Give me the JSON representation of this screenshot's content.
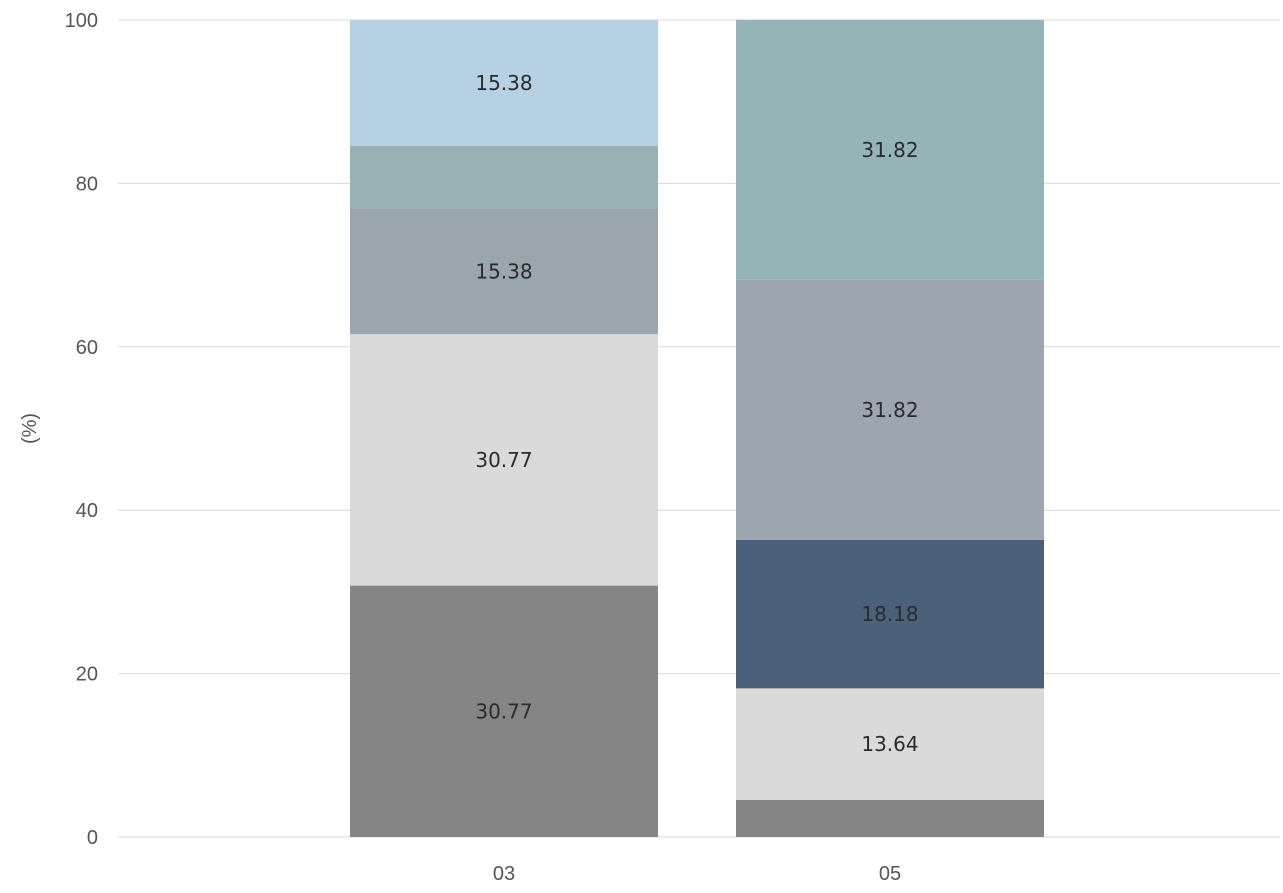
{
  "chart_data": {
    "type": "bar",
    "stacked": true,
    "categories": [
      "03",
      "05"
    ],
    "ylabel": "(%)",
    "ylim": [
      0,
      100
    ],
    "yticks": [
      0,
      20,
      40,
      60,
      80,
      100
    ],
    "grid": true,
    "segments": [
      {
        "category": "03",
        "start": 0,
        "value": 30.77,
        "color": "#858585",
        "label": "30.77"
      },
      {
        "category": "03",
        "start": 30.77,
        "value": 30.77,
        "color": "#dadada",
        "label": "30.77"
      },
      {
        "category": "03",
        "start": 61.54,
        "value": 15.38,
        "color": "#9ba5ac",
        "label": "15.38"
      },
      {
        "category": "03",
        "start": 76.92,
        "value": 7.7,
        "color": "#97b1b5",
        "label": ""
      },
      {
        "category": "03",
        "start": 84.62,
        "value": 15.38,
        "color": "#b6d1e4",
        "label": "15.38"
      },
      {
        "category": "05",
        "start": 0,
        "value": 4.55,
        "color": "#858585",
        "label": ""
      },
      {
        "category": "05",
        "start": 4.55,
        "value": 13.64,
        "color": "#dadada",
        "label": "13.64"
      },
      {
        "category": "05",
        "start": 18.19,
        "value": 18.18,
        "color": "#4b6079",
        "label": "18.18"
      },
      {
        "category": "05",
        "start": 36.37,
        "value": 31.82,
        "color": "#9ca5b0",
        "label": "31.82"
      },
      {
        "category": "05",
        "start": 68.19,
        "value": 31.82,
        "color": "#95b4b7",
        "label": "31.82"
      }
    ]
  }
}
